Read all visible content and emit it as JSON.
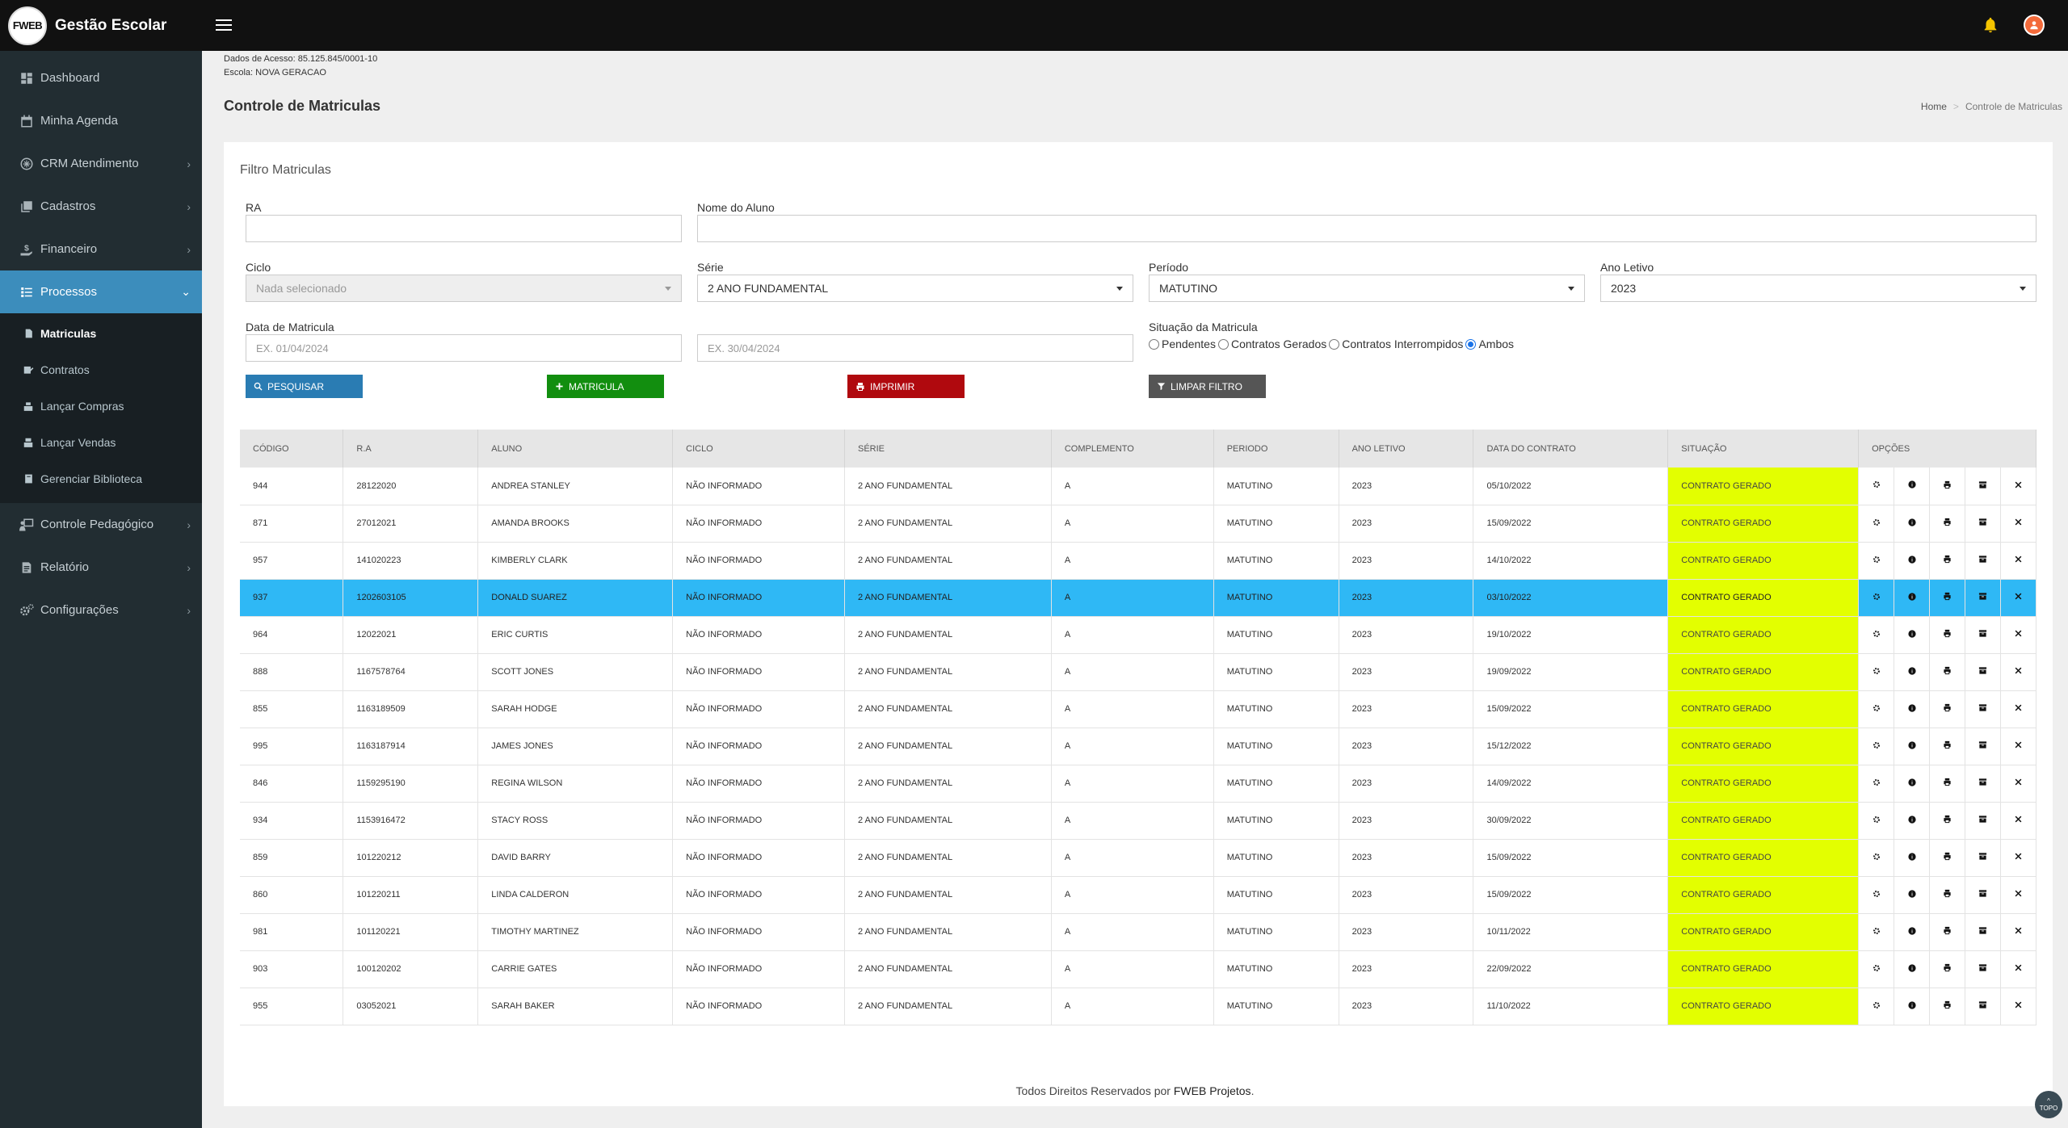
{
  "app": {
    "logo_text": "FWEB",
    "title": "Gestão Escolar"
  },
  "sidebar": {
    "items": [
      {
        "label": "Dashboard",
        "icon": "dashboard-icon",
        "has_children": false
      },
      {
        "label": "Minha Agenda",
        "icon": "calendar-icon",
        "has_children": false
      },
      {
        "label": "CRM Atendimento",
        "icon": "crm-icon",
        "has_children": true
      },
      {
        "label": "Cadastros",
        "icon": "files-icon",
        "has_children": true
      },
      {
        "label": "Financeiro",
        "icon": "money-icon",
        "has_children": true
      },
      {
        "label": "Processos",
        "icon": "list-icon",
        "has_children": true,
        "active": true
      }
    ],
    "sub_items": [
      {
        "label": "Matriculas",
        "icon": "document-icon",
        "active": true
      },
      {
        "label": "Contratos",
        "icon": "contract-icon"
      },
      {
        "label": "Lançar Compras",
        "icon": "cart-icon"
      },
      {
        "label": "Lançar Vendas",
        "icon": "sale-icon"
      },
      {
        "label": "Gerenciar Biblioteca",
        "icon": "book-icon"
      }
    ],
    "items_after": [
      {
        "label": "Controle Pedagógico",
        "icon": "teacher-icon",
        "has_children": true
      },
      {
        "label": "Relatório",
        "icon": "report-icon",
        "has_children": true
      },
      {
        "label": "Configurações",
        "icon": "gears-icon",
        "has_children": true
      }
    ]
  },
  "header": {
    "access_data": "Dados de Acesso: 85.125.845/0001-10",
    "school": "Escola: NOVA GERACAO",
    "page_title": "Controle de Matriculas",
    "breadcrumb": {
      "home": "Home",
      "current": "Controle de Matriculas"
    }
  },
  "filter": {
    "title": "Filtro Matriculas",
    "ra_label": "RA",
    "ra_value": "",
    "nome_label": "Nome do Aluno",
    "nome_value": "",
    "ciclo_label": "Ciclo",
    "ciclo_value": "Nada selecionado",
    "serie_label": "Série",
    "serie_value": "2 ANO FUNDAMENTAL",
    "periodo_label": "Período",
    "periodo_value": "MATUTINO",
    "ano_label": "Ano Letivo",
    "ano_value": "2023",
    "data_label": "Data de Matricula",
    "data_inicio_placeholder": "EX. 01/04/2024",
    "data_fim_placeholder": "EX. 30/04/2024",
    "situacao_label": "Situação da Matricula",
    "situacao_options": [
      "Pendentes",
      "Contratos Gerados",
      "Contratos Interrompidos",
      "Ambos"
    ],
    "situacao_selected": "Ambos",
    "buttons": {
      "pesquisar": "PESQUISAR",
      "matricula": "MATRICULA",
      "imprimir": "IMPRIMIR",
      "limpar": "LIMPAR FILTRO"
    }
  },
  "table": {
    "columns": [
      "CÓDIGO",
      "R.A",
      "ALUNO",
      "CICLO",
      "SÉRIE",
      "COMPLEMENTO",
      "PERIODO",
      "ANO LETIVO",
      "DATA DO CONTRATO",
      "SITUAÇÃO",
      "OPÇÕES"
    ],
    "selected_row": 3,
    "rows": [
      [
        "944",
        "28122020",
        "ANDREA STANLEY",
        "NÃO INFORMADO",
        "2 ANO FUNDAMENTAL",
        "A",
        "MATUTINO",
        "2023",
        "05/10/2022",
        "CONTRATO GERADO"
      ],
      [
        "871",
        "27012021",
        "AMANDA BROOKS",
        "NÃO INFORMADO",
        "2 ANO FUNDAMENTAL",
        "A",
        "MATUTINO",
        "2023",
        "15/09/2022",
        "CONTRATO GERADO"
      ],
      [
        "957",
        "141020223",
        "KIMBERLY CLARK",
        "NÃO INFORMADO",
        "2 ANO FUNDAMENTAL",
        "A",
        "MATUTINO",
        "2023",
        "14/10/2022",
        "CONTRATO GERADO"
      ],
      [
        "937",
        "1202603105",
        "DONALD SUAREZ",
        "NÃO INFORMADO",
        "2 ANO FUNDAMENTAL",
        "A",
        "MATUTINO",
        "2023",
        "03/10/2022",
        "CONTRATO GERADO"
      ],
      [
        "964",
        "12022021",
        "ERIC CURTIS",
        "NÃO INFORMADO",
        "2 ANO FUNDAMENTAL",
        "A",
        "MATUTINO",
        "2023",
        "19/10/2022",
        "CONTRATO GERADO"
      ],
      [
        "888",
        "1167578764",
        "SCOTT JONES",
        "NÃO INFORMADO",
        "2 ANO FUNDAMENTAL",
        "A",
        "MATUTINO",
        "2023",
        "19/09/2022",
        "CONTRATO GERADO"
      ],
      [
        "855",
        "1163189509",
        "SARAH HODGE",
        "NÃO INFORMADO",
        "2 ANO FUNDAMENTAL",
        "A",
        "MATUTINO",
        "2023",
        "15/09/2022",
        "CONTRATO GERADO"
      ],
      [
        "995",
        "1163187914",
        "JAMES JONES",
        "NÃO INFORMADO",
        "2 ANO FUNDAMENTAL",
        "A",
        "MATUTINO",
        "2023",
        "15/12/2022",
        "CONTRATO GERADO"
      ],
      [
        "846",
        "1159295190",
        "REGINA WILSON",
        "NÃO INFORMADO",
        "2 ANO FUNDAMENTAL",
        "A",
        "MATUTINO",
        "2023",
        "14/09/2022",
        "CONTRATO GERADO"
      ],
      [
        "934",
        "1153916472",
        "STACY ROSS",
        "NÃO INFORMADO",
        "2 ANO FUNDAMENTAL",
        "A",
        "MATUTINO",
        "2023",
        "30/09/2022",
        "CONTRATO GERADO"
      ],
      [
        "859",
        "101220212",
        "DAVID BARRY",
        "NÃO INFORMADO",
        "2 ANO FUNDAMENTAL",
        "A",
        "MATUTINO",
        "2023",
        "15/09/2022",
        "CONTRATO GERADO"
      ],
      [
        "860",
        "101220211",
        "LINDA CALDERON",
        "NÃO INFORMADO",
        "2 ANO FUNDAMENTAL",
        "A",
        "MATUTINO",
        "2023",
        "15/09/2022",
        "CONTRATO GERADO"
      ],
      [
        "981",
        "101120221",
        "TIMOTHY MARTINEZ",
        "NÃO INFORMADO",
        "2 ANO FUNDAMENTAL",
        "A",
        "MATUTINO",
        "2023",
        "10/11/2022",
        "CONTRATO GERADO"
      ],
      [
        "903",
        "100120202",
        "CARRIE GATES",
        "NÃO INFORMADO",
        "2 ANO FUNDAMENTAL",
        "A",
        "MATUTINO",
        "2023",
        "22/09/2022",
        "CONTRATO GERADO"
      ],
      [
        "955",
        "03052021",
        "SARAH BAKER",
        "NÃO INFORMADO",
        "2 ANO FUNDAMENTAL",
        "A",
        "MATUTINO",
        "2023",
        "11/10/2022",
        "CONTRATO GERADO"
      ]
    ],
    "row_actions": [
      "gear-icon",
      "info-icon",
      "print-icon",
      "archive-icon",
      "delete-icon"
    ]
  },
  "footer": {
    "text": "Todos Direitos Reservados por ",
    "brand": "FWEB Projetos",
    "suffix": "."
  },
  "topo_label": "TOPO",
  "colors": {
    "sidebar": "#222d32",
    "active": "#3c8dbc",
    "selected_row": "#2fb8f5",
    "situacao": "#e3ff00"
  }
}
